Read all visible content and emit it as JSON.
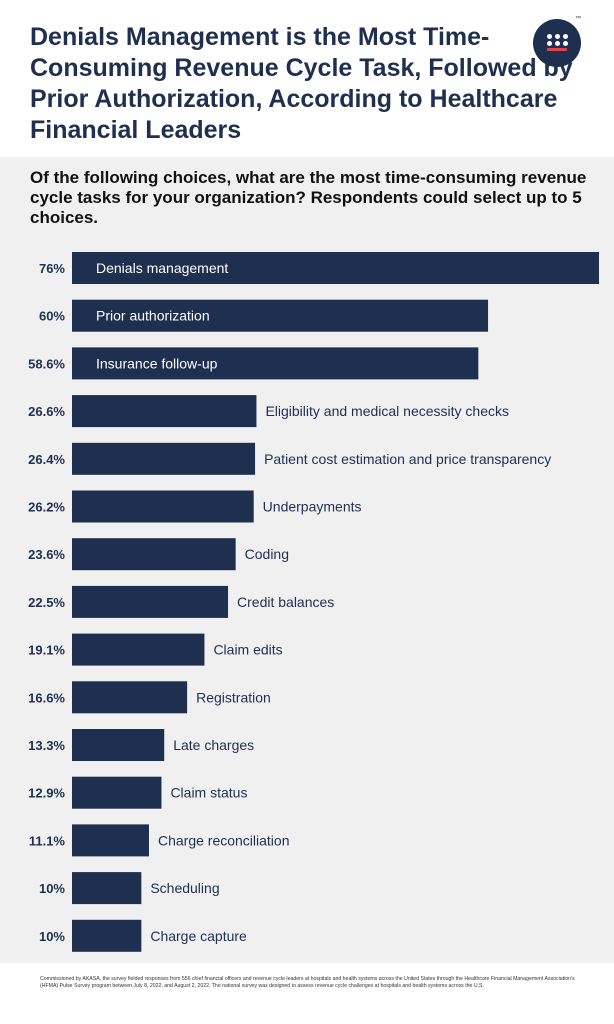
{
  "title": "Denials Management is the Most Time-Consuming Revenue Cycle Task, Followed by Prior Authorization, According to Healthcare Financial Leaders",
  "question": "Of the following choices, what are the most time-consuming revenue cycle tasks for your organization? Respondents could select up to 5 choices.",
  "logo": {
    "icon": "akasa-logo-icon"
  },
  "footnote": "Commissioned by AKASA, the survey fielded responses from 556 chief financial officers and revenue cycle leaders at hospitals and health systems across the United States through the Healthcare Financial Management Association's (HFMA) Pulse Survey program between July 8, 2022, and August 2, 2022. The national survey was designed to assess revenue cycle challenges at hospitals and health systems across the U.S.",
  "colors": {
    "bar": "#1f2f4f",
    "panel": "#f0f0f1",
    "accent": "#e0454f"
  },
  "chart_data": {
    "type": "bar",
    "orientation": "horizontal",
    "title": "Of the following choices, what are the most time-consuming revenue cycle tasks for your organization?",
    "xlabel": "",
    "ylabel": "",
    "xlim": [
      0,
      76
    ],
    "categories": [
      "Denials management",
      "Prior authorization",
      "Insurance follow-up",
      "Eligibility and medical necessity checks",
      "Patient cost estimation and price transparency",
      "Underpayments",
      "Coding",
      "Credit balances",
      "Claim edits",
      "Registration",
      "Late charges",
      "Claim status",
      "Charge reconciliation",
      "Scheduling",
      "Charge capture"
    ],
    "values": [
      76,
      60,
      58.6,
      26.6,
      26.4,
      26.2,
      23.6,
      22.5,
      19.1,
      16.6,
      13.3,
      12.9,
      11.1,
      10,
      10
    ],
    "value_labels": [
      "76%",
      "60%",
      "58.6%",
      "26.6%",
      "26.4%",
      "26.2%",
      "23.6%",
      "22.5%",
      "19.1%",
      "16.6%",
      "13.3%",
      "12.9%",
      "11.1%",
      "10%",
      "10%"
    ],
    "labels_inside": [
      true,
      true,
      true,
      false,
      false,
      false,
      false,
      false,
      false,
      false,
      false,
      false,
      false,
      false,
      false
    ]
  }
}
